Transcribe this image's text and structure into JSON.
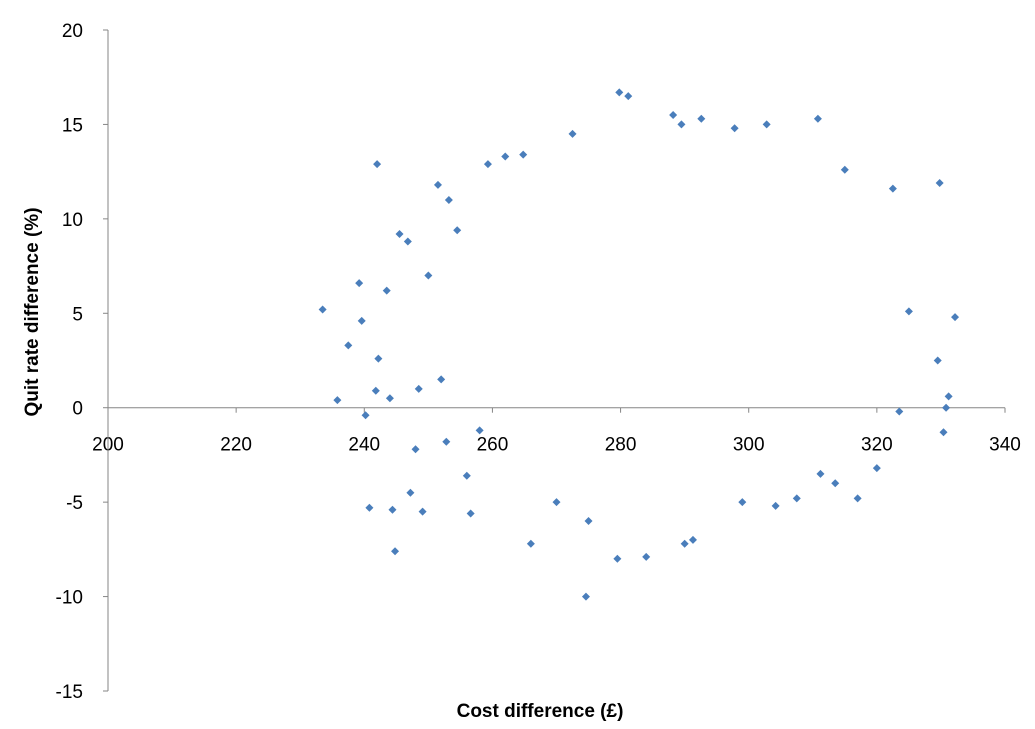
{
  "chart_data": {
    "type": "scatter",
    "title": "",
    "xlabel": "Cost difference (£)",
    "ylabel": "Quit rate difference (%)",
    "xlim": [
      200,
      340
    ],
    "ylim": [
      -15,
      20
    ],
    "x_ticks": [
      "200",
      "220",
      "240",
      "260",
      "280",
      "300",
      "320",
      "340"
    ],
    "y_ticks": [
      "20",
      "15",
      "10",
      "5",
      "0",
      "-5",
      "-10",
      "-15"
    ],
    "marker": "diamond",
    "grid": false,
    "legend": "none",
    "series": [
      {
        "color": "#4a7ebb",
        "points": [
          [
            233.5,
            5.2
          ],
          [
            235.8,
            0.4
          ],
          [
            237.5,
            3.3
          ],
          [
            239.2,
            6.6
          ],
          [
            239.6,
            4.6
          ],
          [
            240.2,
            -0.4
          ],
          [
            240.8,
            -5.3
          ],
          [
            241.8,
            0.9
          ],
          [
            242.0,
            12.9
          ],
          [
            242.2,
            2.6
          ],
          [
            243.5,
            6.2
          ],
          [
            244.0,
            0.5
          ],
          [
            244.4,
            -5.4
          ],
          [
            244.8,
            -7.6
          ],
          [
            245.5,
            9.2
          ],
          [
            246.8,
            8.8
          ],
          [
            247.2,
            -4.5
          ],
          [
            248.0,
            -2.2
          ],
          [
            248.5,
            1.0
          ],
          [
            249.1,
            -5.5
          ],
          [
            250.0,
            7.0
          ],
          [
            251.5,
            11.8
          ],
          [
            252.0,
            1.5
          ],
          [
            252.8,
            -1.8
          ],
          [
            253.2,
            11.0
          ],
          [
            254.5,
            9.4
          ],
          [
            256.0,
            -3.6
          ],
          [
            256.6,
            -5.6
          ],
          [
            258.0,
            -1.2
          ],
          [
            259.3,
            12.9
          ],
          [
            262.0,
            13.3
          ],
          [
            264.8,
            13.4
          ],
          [
            266.0,
            -7.2
          ],
          [
            270.0,
            -5.0
          ],
          [
            272.5,
            14.5
          ],
          [
            274.6,
            -10.0
          ],
          [
            275.0,
            -6.0
          ],
          [
            279.5,
            -8.0
          ],
          [
            279.8,
            16.7
          ],
          [
            281.2,
            16.5
          ],
          [
            284.0,
            -7.9
          ],
          [
            288.2,
            15.5
          ],
          [
            289.5,
            15.0
          ],
          [
            290.0,
            -7.2
          ],
          [
            291.3,
            -7.0
          ],
          [
            292.6,
            15.3
          ],
          [
            297.8,
            14.8
          ],
          [
            299.0,
            -5.0
          ],
          [
            302.8,
            15.0
          ],
          [
            304.2,
            -5.2
          ],
          [
            307.5,
            -4.8
          ],
          [
            310.8,
            15.3
          ],
          [
            311.2,
            -3.5
          ],
          [
            313.5,
            -4.0
          ],
          [
            315.0,
            12.6
          ],
          [
            317.0,
            -4.8
          ],
          [
            320.0,
            -3.2
          ],
          [
            322.5,
            11.6
          ],
          [
            323.5,
            -0.2
          ],
          [
            325.0,
            5.1
          ],
          [
            329.5,
            2.5
          ],
          [
            329.8,
            11.9
          ],
          [
            330.4,
            -1.3
          ],
          [
            330.8,
            0.0
          ],
          [
            331.2,
            0.6
          ],
          [
            332.2,
            4.8
          ]
        ]
      }
    ]
  }
}
